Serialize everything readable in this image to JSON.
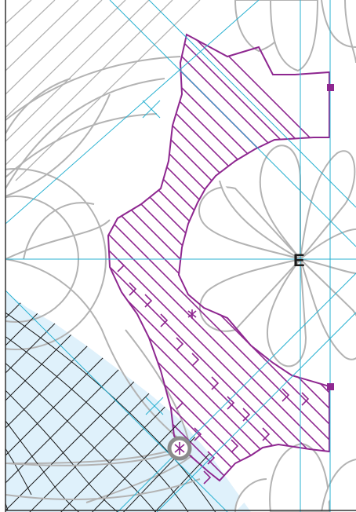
{
  "diagram": {
    "center_label": "E",
    "colors": {
      "guide": "#29b1d1",
      "outline": "#b3b3b3",
      "stitch": "#8e2790",
      "fill_light": "#dff1fb",
      "frame": "#333333",
      "dark": "#1a1a1a"
    },
    "icons": [
      "start-marker-icon",
      "corner-square-icon"
    ]
  }
}
